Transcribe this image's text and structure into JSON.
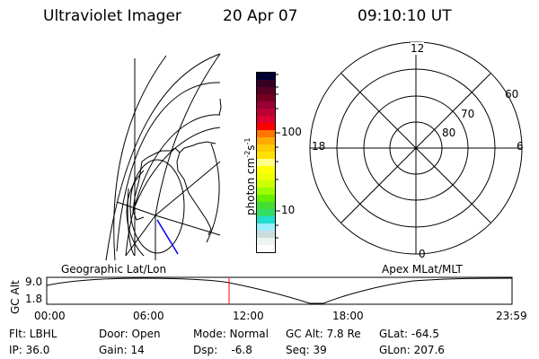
{
  "header": {
    "instrument": "Ultraviolet Imager",
    "date": "20 Apr 07",
    "time": "09:10:10 UT"
  },
  "colorbar": {
    "label": "photon cm",
    "label_exp1": "-2",
    "label_mid": "s",
    "label_exp2": "-1",
    "ticks": [
      "100",
      "10"
    ],
    "colors": [
      "#000033",
      "#330022",
      "#550022",
      "#770022",
      "#990033",
      "#bb0033",
      "#dd0033",
      "#ff0000",
      "#ff7700",
      "#ffaa00",
      "#ffcc00",
      "#ffe000",
      "#ffff88",
      "#ffff00",
      "#eeff00",
      "#ccff00",
      "#99ff00",
      "#66ee00",
      "#44dd33",
      "#33dd66",
      "#22ddcc",
      "#99eeff",
      "#ccdddd",
      "#eef4f0",
      "#ffffff"
    ]
  },
  "polar": {
    "mlt_labels": {
      "top": "12",
      "bottom": "0",
      "left": "18",
      "right": "6"
    },
    "lat_labels": [
      "80",
      "70",
      "60"
    ]
  },
  "map_labels": {
    "left": "Geographic Lat/Lon",
    "right": "Apex MLat/MLT"
  },
  "altitude_plot": {
    "ylabel": "GC Alt",
    "yticks": [
      "9.0",
      "1.8"
    ],
    "xticks": [
      "00:00",
      "06:00",
      "12:00",
      "18:00",
      "23:59"
    ],
    "current_time_marker": "09:10",
    "marker_color": "#ff0000"
  },
  "info": {
    "filter": "Flt: LBHL",
    "door": "Door: Open",
    "mode": "Mode: Normal",
    "gc_alt": "GC Alt: 7.8 Re",
    "glat": "GLat: -64.5",
    "ip": "IP: 36.0",
    "gain": "Gain: 14",
    "dsp": "Dsp:    -6.8",
    "seq": "Seq: 39",
    "glon": "GLon: 207.6"
  }
}
